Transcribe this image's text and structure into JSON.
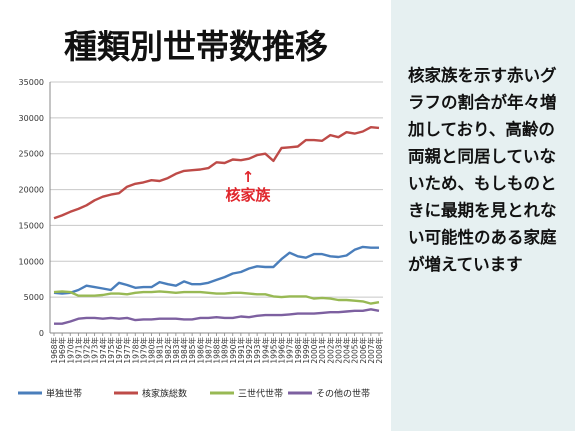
{
  "chart_data": {
    "type": "line",
    "title": "種類別世帯数推移",
    "annotation": "核家族",
    "annotation_arrow": "↑",
    "ylim": [
      0,
      35000
    ],
    "yticks": [
      0,
      5000,
      10000,
      15000,
      20000,
      25000,
      30000,
      35000
    ],
    "x": [
      "1968年",
      "1969年",
      "1970年",
      "1971年",
      "1972年",
      "1973年",
      "1974年",
      "1975年",
      "1976年",
      "1977年",
      "1978年",
      "1979年",
      "1980年",
      "1981年",
      "1982年",
      "1983年",
      "1984年",
      "1985年",
      "1986年",
      "1987年",
      "1988年",
      "1989年",
      "1990年",
      "1991年",
      "1992年",
      "1993年",
      "1994年",
      "1995年",
      "1996年",
      "1997年",
      "1998年",
      "1999年",
      "2000年",
      "2001年",
      "2002年",
      "2003年",
      "2004年",
      "2005年",
      "2006年",
      "2007年",
      "2008年"
    ],
    "series": [
      {
        "name": "単独世帯",
        "color": "#4a7ebb",
        "values": [
          5600,
          5500,
          5600,
          6000,
          6600,
          6400,
          6200,
          6000,
          7000,
          6700,
          6300,
          6400,
          6400,
          7100,
          6800,
          6600,
          7200,
          6800,
          6800,
          7000,
          7400,
          7800,
          8300,
          8500,
          9000,
          9300,
          9200,
          9200,
          10300,
          11200,
          10700,
          10500,
          11000,
          11000,
          10700,
          10600,
          10800,
          11600,
          12000,
          11900,
          11900
        ]
      },
      {
        "name": "核家族総数",
        "color": "#be4b48",
        "values": [
          16000,
          16400,
          16900,
          17300,
          17800,
          18500,
          19000,
          19300,
          19500,
          20400,
          20800,
          21000,
          21300,
          21200,
          21600,
          22200,
          22600,
          22700,
          22800,
          23000,
          23800,
          23700,
          24200,
          24100,
          24300,
          24800,
          25000,
          24000,
          25800,
          25900,
          26000,
          26900,
          26900,
          26800,
          27600,
          27300,
          28000,
          27800,
          28100,
          28700,
          28600
        ]
      },
      {
        "name": "三世代世帯",
        "color": "#98b954",
        "values": [
          5700,
          5800,
          5700,
          5200,
          5200,
          5200,
          5300,
          5500,
          5500,
          5400,
          5600,
          5700,
          5700,
          5800,
          5700,
          5600,
          5700,
          5700,
          5700,
          5600,
          5500,
          5500,
          5600,
          5600,
          5500,
          5400,
          5400,
          5100,
          5000,
          5100,
          5100,
          5100,
          4800,
          4900,
          4800,
          4600,
          4600,
          4500,
          4400,
          4100,
          4300
        ]
      },
      {
        "name": "その他の世帯",
        "color": "#7d60a0",
        "values": [
          1300,
          1300,
          1600,
          2000,
          2100,
          2100,
          2000,
          2100,
          2000,
          2100,
          1800,
          1900,
          1900,
          2000,
          2000,
          2000,
          1900,
          1900,
          2100,
          2100,
          2200,
          2100,
          2100,
          2300,
          2200,
          2400,
          2500,
          2500,
          2500,
          2600,
          2700,
          2700,
          2700,
          2800,
          2900,
          2900,
          3000,
          3100,
          3100,
          3300,
          3100
        ]
      }
    ],
    "legend_position": "bottom",
    "grid": true
  },
  "side_text": "核家族を示す赤いグラフの割合が年々増加しており、高齢の両親と同居していないため、もしものときに最期を見とれない可能性のある家庭が増えています"
}
